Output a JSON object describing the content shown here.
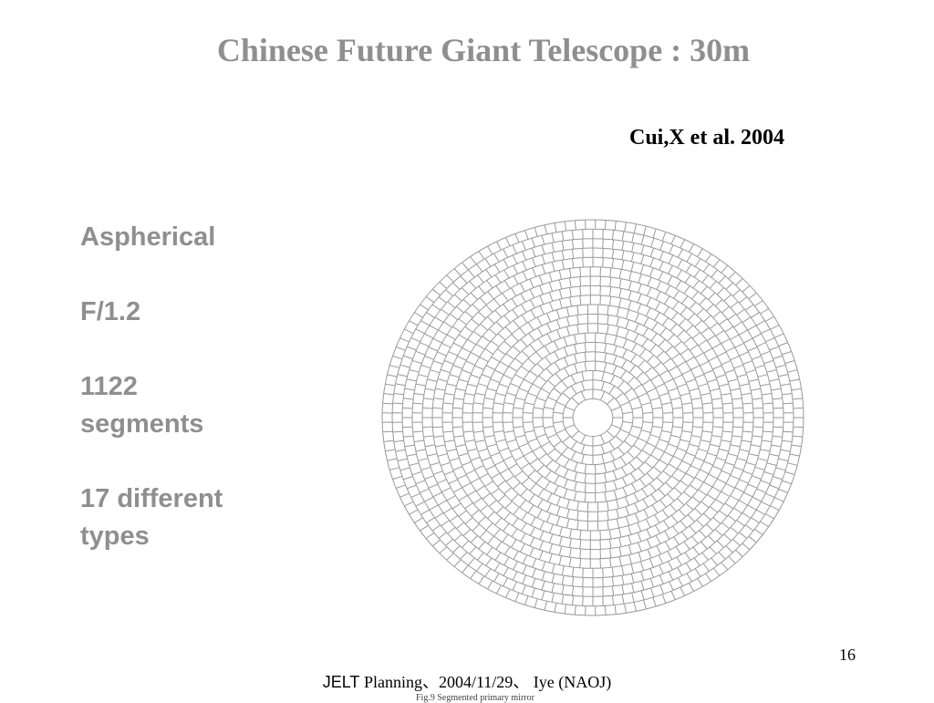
{
  "slide": {
    "title": "Chinese Future Giant Telescope : 30m",
    "citation": "Cui,X et al. 2004",
    "specs": {
      "aspherical": "Aspherical",
      "focal_ratio": "F/1.2",
      "segments_count": "1122",
      "segments_word": "segments",
      "types_line1": "17 different",
      "types_line2": "types"
    },
    "page_number": "16",
    "footer": {
      "brand": "JELT",
      "rest": " Planning、2004/11/29、 Iye (NAOJ)"
    },
    "figure_caption": "Fig.9 Segmented primary mirror"
  },
  "colors": {
    "title_gray": "#8f8f8f",
    "mirror_line": "#9a9a9a"
  }
}
